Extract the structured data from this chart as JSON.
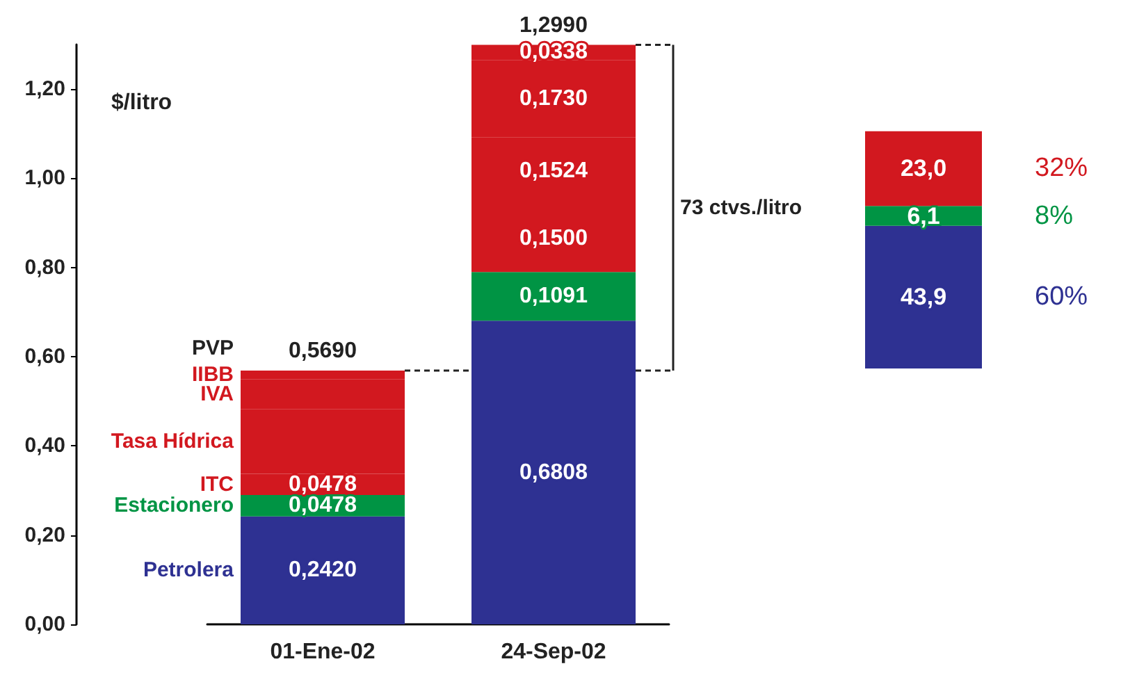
{
  "chart_data": [
    {
      "type": "bar",
      "stacked": true,
      "ylabel": "$/litro",
      "categories": [
        "01-Ene-02",
        "24-Sep-02"
      ],
      "series": [
        {
          "name": "Petrolera",
          "color": "#2e3192",
          "values": [
            0.242,
            0.6808
          ],
          "value_labels": [
            "0,2420",
            "0,6808"
          ]
        },
        {
          "name": "Estacionero",
          "color": "#009444",
          "values": [
            0.0478,
            0.1091
          ],
          "value_labels": [
            "0,0478",
            "0,1091"
          ]
        },
        {
          "name": "ITC",
          "color": "#d2181f",
          "values": [
            0.0478,
            0.15
          ],
          "value_labels": [
            "0,0478",
            "0,1500"
          ]
        },
        {
          "name": "Tasa Hídrica",
          "color": "#d2181f",
          "values": [
            0.1454,
            0.1524
          ],
          "value_labels": [
            null,
            "0,1524"
          ]
        },
        {
          "name": "IVA",
          "color": "#d2181f",
          "values": [
            0.066,
            0.173
          ],
          "value_labels": [
            null,
            "0,1730"
          ]
        },
        {
          "name": "IIBB",
          "color": "#d2181f",
          "values": [
            0.02,
            0.0338
          ],
          "value_labels": [
            null,
            "0,0338"
          ]
        }
      ],
      "totals": [
        "0,5690",
        "1,2990"
      ],
      "ylim": [
        0,
        1.3
      ],
      "yticks": [
        {
          "value": 0,
          "label": "0,00"
        },
        {
          "value": 0.2,
          "label": "0,20"
        },
        {
          "value": 0.4,
          "label": "0,40"
        },
        {
          "value": 0.6,
          "label": "0,60"
        },
        {
          "value": 0.8,
          "label": "0,80"
        },
        {
          "value": 1.0,
          "label": "1,00"
        },
        {
          "value": 1.2,
          "label": "1,20"
        }
      ],
      "annotations": [
        "PVP",
        "73 ctvs./litro"
      ],
      "grid": false,
      "legend": false
    },
    {
      "type": "bar",
      "stacked": true,
      "categories": [
        null
      ],
      "tick_labels": false,
      "series": [
        {
          "color": "#2e3192",
          "values": [
            43.9
          ],
          "value_labels": [
            "43,9"
          ]
        },
        {
          "color": "#009444",
          "values": [
            6.1
          ],
          "value_labels": [
            "6,1"
          ]
        },
        {
          "color": "#d2181f",
          "values": [
            23.0
          ],
          "value_labels": [
            "23,0"
          ]
        }
      ],
      "annotations": [
        "60%",
        "8%",
        "32%"
      ],
      "grid": false,
      "legend": false
    }
  ]
}
